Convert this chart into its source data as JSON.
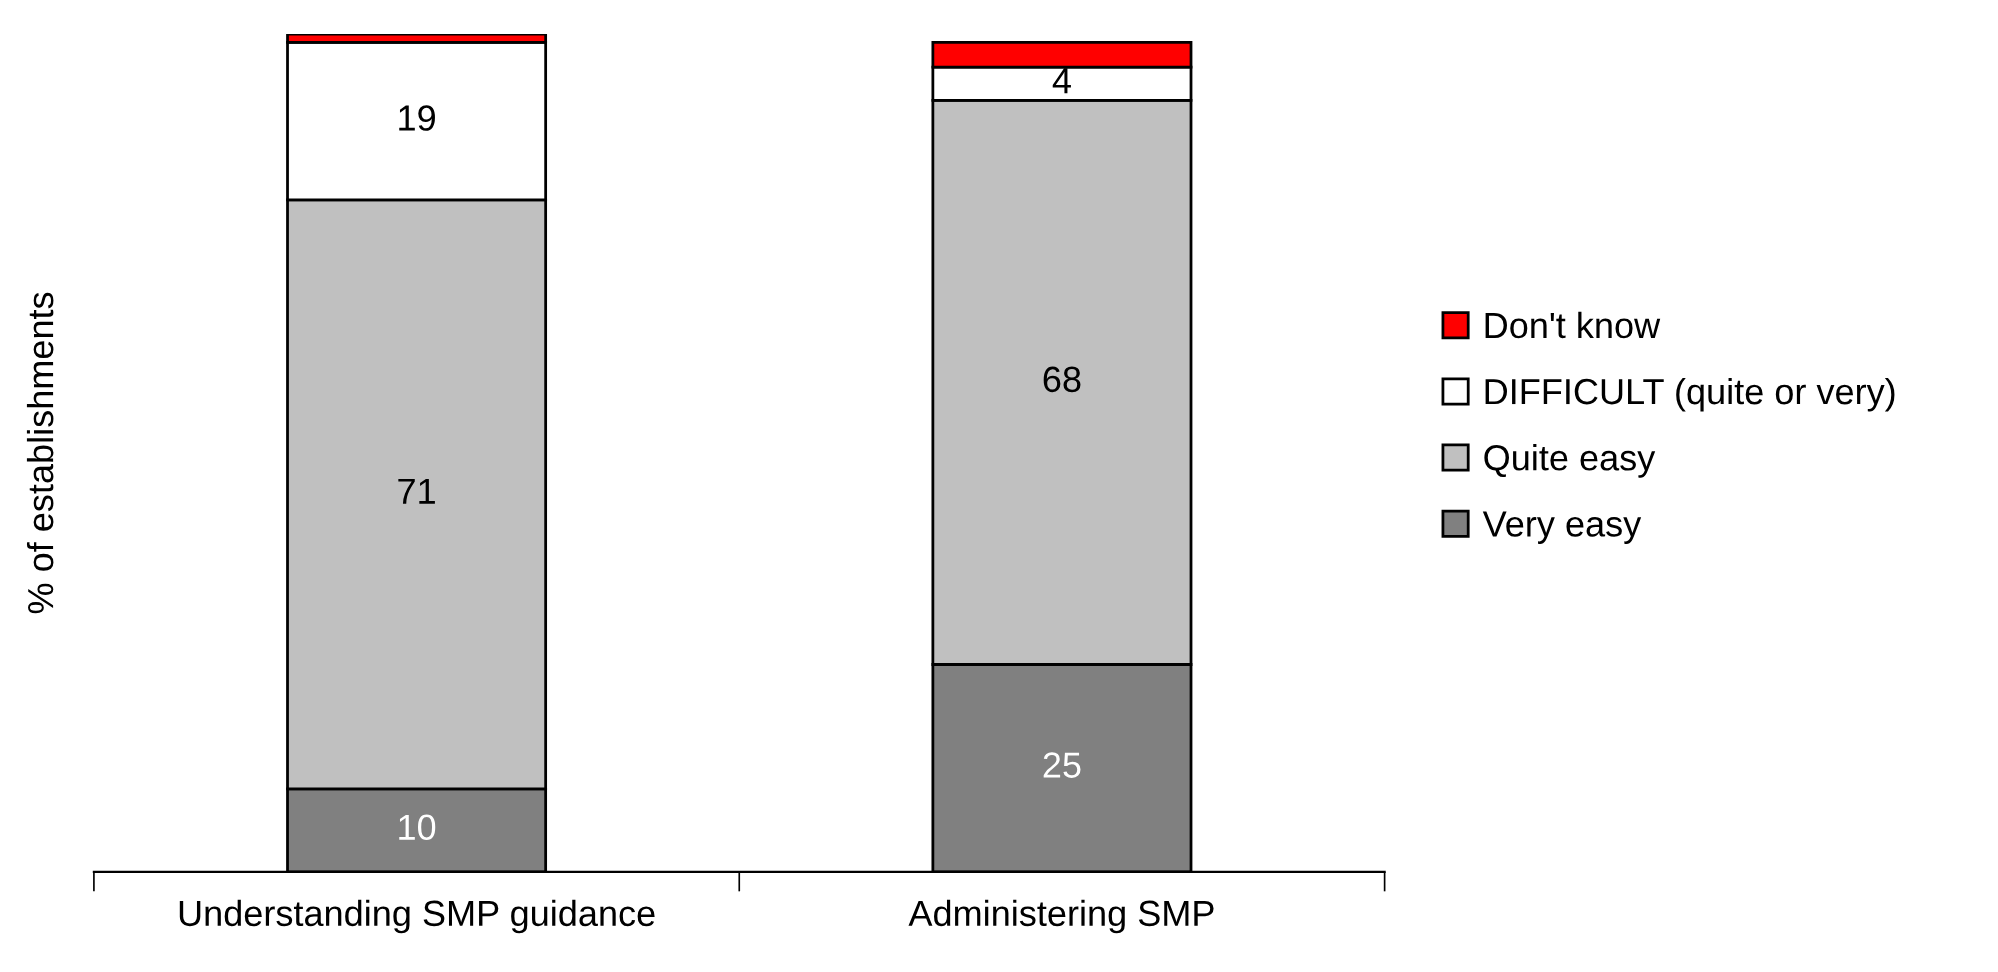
{
  "chart_data": {
    "type": "bar",
    "stacked": true,
    "ylabel": "% of establishments",
    "categories": [
      "Understanding SMP guidance",
      "Administering SMP"
    ],
    "series": [
      {
        "name": "Very easy",
        "color": "#808080",
        "values": [
          10,
          25
        ],
        "value_labels": [
          "10",
          "25"
        ]
      },
      {
        "name": "Quite easy",
        "color": "#c0c0c0",
        "values": [
          71,
          68
        ],
        "value_labels": [
          "71",
          "68"
        ]
      },
      {
        "name": "DIFFICULT (quite or very)",
        "color": "#ffffff",
        "values": [
          19,
          4
        ],
        "value_labels": [
          "19",
          "4"
        ]
      },
      {
        "name": "Don't know",
        "color": "#ff0000",
        "values": [
          1,
          3
        ],
        "value_labels": [
          null,
          null
        ]
      }
    ],
    "legend": "right",
    "grid": false
  }
}
